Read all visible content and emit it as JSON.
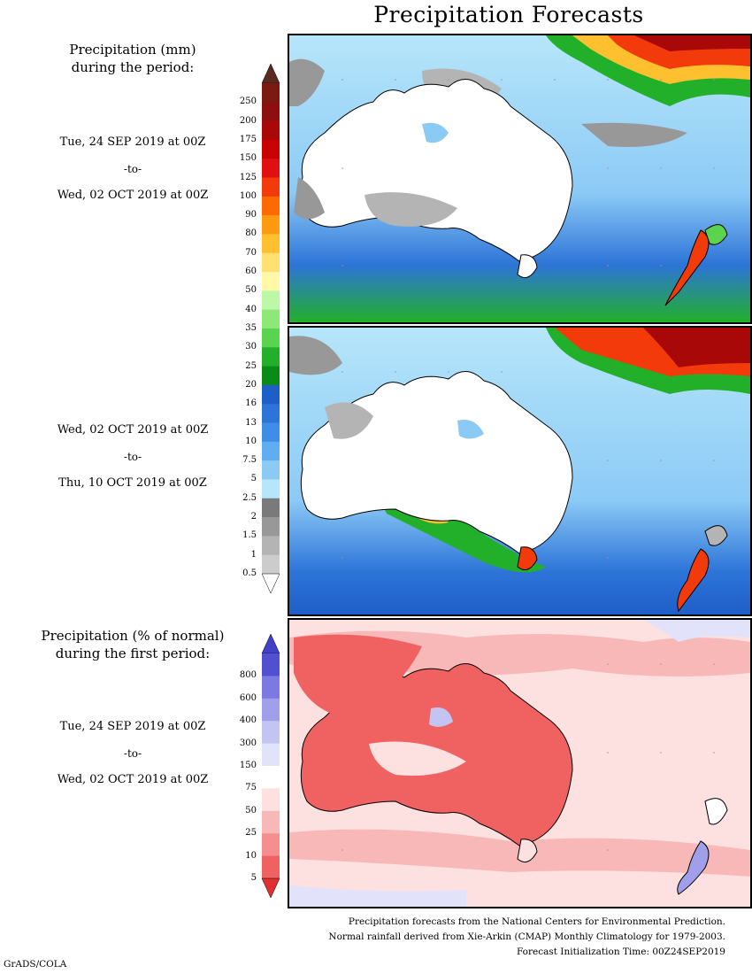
{
  "title": "Precipitation Forecasts",
  "precip_legend": {
    "heading_line1": "Precipitation (mm)",
    "heading_line2": "during the period:",
    "labels": [
      "250",
      "200",
      "175",
      "150",
      "125",
      "100",
      "90",
      "80",
      "70",
      "60",
      "50",
      "40",
      "35",
      "30",
      "25",
      "20",
      "16",
      "13",
      "10",
      "7.5",
      "5",
      "2.5",
      "2",
      "1.5",
      "1",
      "0.5"
    ],
    "colors": [
      "#7a1a10",
      "#8c1010",
      "#a80808",
      "#c80000",
      "#e01010",
      "#f23a0a",
      "#ff6a00",
      "#ff9a10",
      "#ffc030",
      "#ffe070",
      "#fff8a8",
      "#bdf7a8",
      "#8ee878",
      "#5ad34e",
      "#22b02a",
      "#0a8a16",
      "#1e5ec8",
      "#2d74d8",
      "#3e8de6",
      "#60aef0",
      "#8ccaf6",
      "#b6e6fa",
      "#7a7a7a",
      "#989898",
      "#b4b4b4",
      "#cccccc"
    ]
  },
  "period1": {
    "start": "Tue, 24 SEP 2019 at 00Z",
    "to": "-to-",
    "end": "Wed, 02 OCT 2019 at 00Z"
  },
  "period2": {
    "start": "Wed, 02 OCT 2019 at 00Z",
    "to": "-to-",
    "end": "Thu, 10 OCT 2019 at 00Z"
  },
  "pct_legend": {
    "heading_line1": "Precipitation (% of normal)",
    "heading_line2": "during the first period:",
    "labels": [
      "800",
      "600",
      "400",
      "300",
      "150",
      "75",
      "50",
      "25",
      "10",
      "5"
    ],
    "colors": [
      "#5050d0",
      "#7a7ae0",
      "#a0a0ea",
      "#c4c4f2",
      "#e2e2fa",
      "#ffffff",
      "#fde0e0",
      "#f9b8b8",
      "#f58e8e",
      "#f06262"
    ]
  },
  "period3": {
    "start": "Tue, 24 SEP 2019 at 00Z",
    "to": "-to-",
    "end": "Wed, 02 OCT 2019 at 00Z"
  },
  "footer": {
    "line1": "Precipitation forecasts from the National Centers for Environmental Prediction.",
    "line2": "Normal rainfall derived from Xie-Arkin (CMAP) Monthly Climatology for 1979-2003.",
    "line3": "Forecast Initialization Time: 00Z24SEP2019"
  },
  "credit": "GrADS/COLA"
}
